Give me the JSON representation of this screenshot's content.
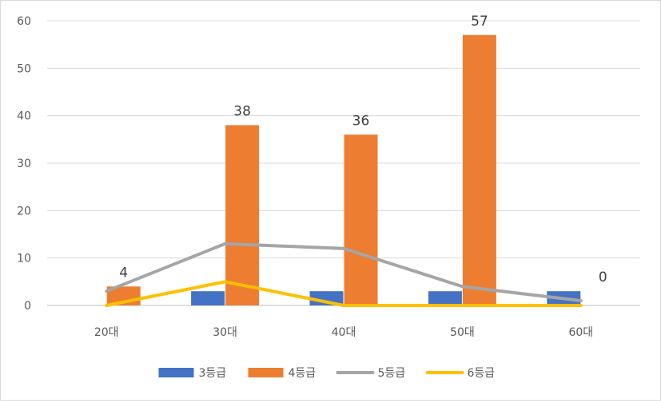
{
  "chart_data": {
    "type": "bar",
    "categories": [
      "20대",
      "30대",
      "40대",
      "50대",
      "60대"
    ],
    "ylim": [
      0,
      60
    ],
    "yticks": [
      0,
      10,
      20,
      30,
      40,
      50,
      60
    ],
    "grid": true,
    "legend_position": "bottom",
    "series": [
      {
        "name": "3등급",
        "kind": "bar",
        "color": "#4472C4",
        "values": [
          0,
          3,
          3,
          3,
          3
        ]
      },
      {
        "name": "4등급",
        "kind": "bar",
        "color": "#ED7D31",
        "values": [
          4,
          38,
          36,
          57,
          0
        ]
      },
      {
        "name": "5등급",
        "kind": "line",
        "color": "#A5A5A5",
        "values": [
          3,
          13,
          12,
          4,
          1
        ]
      },
      {
        "name": "6등급",
        "kind": "line",
        "color": "#FFC000",
        "values": [
          0,
          5,
          0,
          0,
          0
        ]
      }
    ],
    "data_labels": [
      {
        "series": "4등급",
        "category": "20대",
        "text": "4"
      },
      {
        "series": "4등급",
        "category": "30대",
        "text": "38"
      },
      {
        "series": "4등급",
        "category": "40대",
        "text": "36"
      },
      {
        "series": "4등급",
        "category": "50대",
        "text": "57"
      },
      {
        "series": "4등급",
        "category": "60대",
        "text": "0"
      }
    ]
  }
}
